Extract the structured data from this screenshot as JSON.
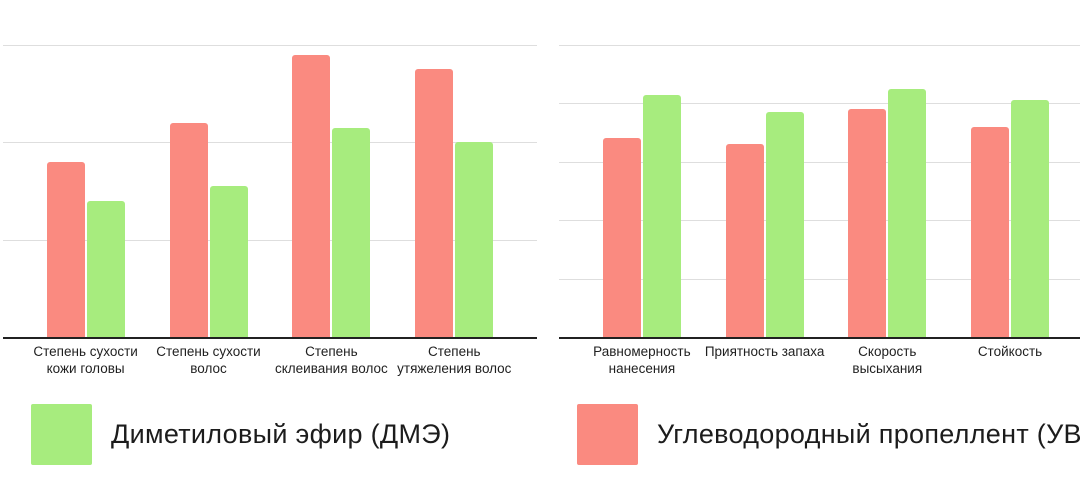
{
  "colors": {
    "background": "#ffffff",
    "dme_green": "#A7EC7E",
    "uvp_red": "#FA8A80",
    "gridline": "#DEDEDE",
    "axis_line": "#212121",
    "category_label": "#1F1F1F",
    "legend_text": "#1C1C1C"
  },
  "legend": {
    "items": [
      {
        "id": "dme",
        "label": "Диметиловый эфир (ДМЭ)",
        "color": "#A7EC7E"
      },
      {
        "id": "uvp",
        "label": "Углеводородный пропеллент (УВП)",
        "color": "#FA8A80"
      }
    ]
  },
  "chart_data": [
    {
      "id": "hair-negative-properties",
      "type": "bar",
      "title": "",
      "categories": [
        "Степень сухости кожи головы",
        "Степень сухости волос",
        "Степень склеивания волос",
        "Степень утяжеления волос"
      ],
      "category_lines": [
        [
          "Степень сухости",
          "кожи головы"
        ],
        [
          "Степень сухости",
          "волос"
        ],
        [
          "Степень",
          "склеивания волос"
        ],
        [
          "Степень",
          "утяжеления волос"
        ]
      ],
      "series": [
        {
          "name": "Углеводородный пропеллент (УВП)",
          "color": "#FA8A80",
          "values": [
            1.8,
            2.2,
            2.9,
            2.75
          ]
        },
        {
          "name": "Диметиловый эфир (ДМЭ)",
          "color": "#A7EC7E",
          "values": [
            1.4,
            1.55,
            2.15,
            2.0
          ]
        }
      ],
      "xlabel": "",
      "ylabel": "",
      "ylim": [
        0,
        3
      ],
      "gridline_interval": 1,
      "grid": true,
      "y_axis_labels_visible": false,
      "legend_position": "none"
    },
    {
      "id": "spray-positive-properties",
      "type": "bar",
      "title": "",
      "categories": [
        "Равномерность нанесения",
        "Приятность запаха",
        "Скорость высыхания",
        "Стойкость"
      ],
      "category_lines": [
        [
          "Равномерность",
          "нанесения"
        ],
        [
          "Приятность запаха"
        ],
        [
          "Скорость",
          "высыхания"
        ],
        [
          "Стойкость"
        ]
      ],
      "series": [
        {
          "name": "Углеводородный пропеллент (УВП)",
          "color": "#FA8A80",
          "values": [
            3.4,
            3.3,
            3.9,
            3.6
          ]
        },
        {
          "name": "Диметиловый эфир (ДМЭ)",
          "color": "#A7EC7E",
          "values": [
            4.15,
            3.85,
            4.25,
            4.05
          ]
        }
      ],
      "xlabel": "",
      "ylabel": "",
      "ylim": [
        0,
        5
      ],
      "gridline_interval": 1,
      "grid": true,
      "y_axis_labels_visible": false,
      "legend_position": "none"
    }
  ]
}
